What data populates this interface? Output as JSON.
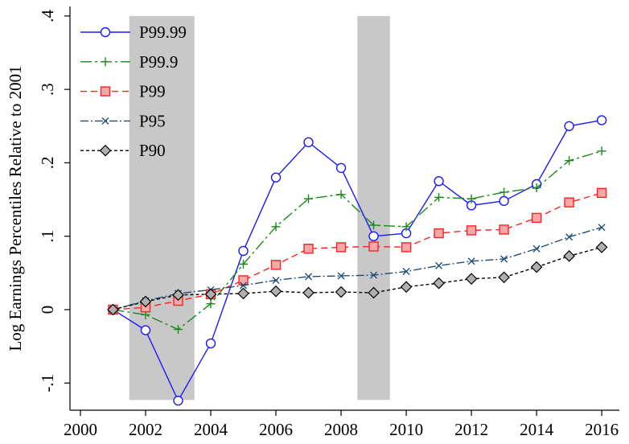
{
  "chart_data": {
    "type": "line",
    "ylabel": "Log Earnings Percentiles Relative to 2001",
    "x": [
      2001,
      2002,
      2003,
      2004,
      2005,
      2006,
      2007,
      2008,
      2009,
      2010,
      2011,
      2012,
      2013,
      2014,
      2015,
      2016
    ],
    "series": [
      {
        "name": "P99.99",
        "color": "#1a1aff",
        "marker": "circle",
        "dash": "none",
        "values": [
          0,
          -0.028,
          -0.124,
          -0.046,
          0.08,
          0.18,
          0.228,
          0.193,
          0.1,
          0.104,
          0.175,
          0.142,
          0.148,
          0.171,
          0.25,
          0.258
        ]
      },
      {
        "name": "P99.9",
        "color": "#1a8a1a",
        "marker": "plus",
        "dash": "14 4 3 4",
        "values": [
          0,
          -0.007,
          -0.027,
          0.008,
          0.062,
          0.113,
          0.151,
          0.157,
          0.115,
          0.113,
          0.153,
          0.151,
          0.16,
          0.166,
          0.203,
          0.216
        ]
      },
      {
        "name": "P99",
        "color": "#ff2020",
        "marker": "square",
        "dash": "8 5",
        "values": [
          0,
          0.003,
          0.012,
          0.021,
          0.04,
          0.061,
          0.083,
          0.085,
          0.086,
          0.085,
          0.104,
          0.108,
          0.109,
          0.125,
          0.146,
          0.159
        ]
      },
      {
        "name": "P95",
        "color": "#1f4e79",
        "marker": "x",
        "dash": "10 3 2 3",
        "values": [
          0,
          0.012,
          0.022,
          0.027,
          0.033,
          0.04,
          0.045,
          0.046,
          0.047,
          0.052,
          0.06,
          0.066,
          0.069,
          0.083,
          0.099,
          0.112
        ]
      },
      {
        "name": "P90",
        "color": "#000000",
        "marker": "diamond",
        "dash": "4 3",
        "values": [
          0,
          0.011,
          0.02,
          0.021,
          0.022,
          0.025,
          0.023,
          0.024,
          0.023,
          0.031,
          0.036,
          0.042,
          0.044,
          0.058,
          0.073,
          0.085
        ]
      }
    ],
    "shaded_x": [
      [
        2001.5,
        2003.5
      ],
      [
        2008.5,
        2009.5
      ]
    ],
    "shaded_y": [
      -0.123,
      0.4
    ],
    "shade_color": "#c8c8c8",
    "xlim": [
      1999.68,
      2016.54
    ],
    "ylim": [
      -0.137,
      0.413
    ],
    "xticks": [
      2000,
      2002,
      2004,
      2006,
      2008,
      2010,
      2012,
      2014,
      2016
    ],
    "yticks": [
      {
        "value": -0.1,
        "label": "-.1"
      },
      0,
      {
        "value": 0.1,
        "label": ".1"
      },
      {
        "value": 0.2,
        "label": ".2"
      },
      {
        "value": 0.3,
        "label": ".3"
      },
      {
        "value": 0.4,
        "label": ".4"
      }
    ],
    "legend": "top-left"
  }
}
